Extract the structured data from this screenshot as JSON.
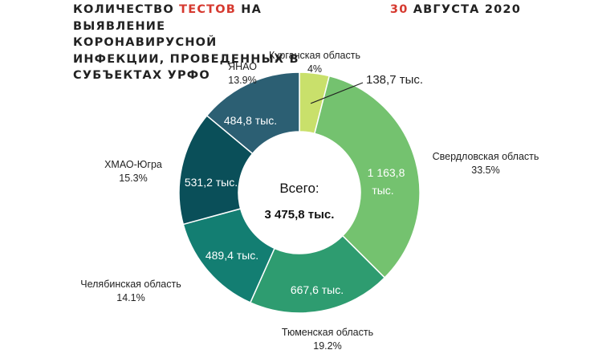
{
  "header": {
    "title_prefix": "КОЛИЧЕСТВО ",
    "title_highlight": "ТЕСТОВ",
    "title_suffix": " НА ВЫЯВЛЕНИЕ КОРОНАВИРУСНОЙ ИНФЕКЦИИ, ПРОВЕДЕННЫХ В СУБЪЕКТАХ УРФО",
    "date_day": "30",
    "date_rest": " АВГУСТА 2020",
    "accent_color": "#d6392f"
  },
  "chart_data": {
    "type": "pie",
    "variant": "donut",
    "start_angle_deg": 0,
    "direction": "clockwise",
    "center": {
      "title": "Всего:",
      "total_label": "3 475,8 тыс.",
      "total": 3475.8
    },
    "slices": [
      {
        "name": "Курганская область",
        "percent_label": "4%",
        "value": 138.7,
        "value_label": "138,7 тыс.",
        "color": "#c9e06b"
      },
      {
        "name": "Свердловская область",
        "percent_label": "33.5%",
        "value": 1163.8,
        "value_label": "1 163,8 тыс.",
        "color": "#74c26f"
      },
      {
        "name": "Тюменская область",
        "percent_label": "19.2%",
        "value": 667.6,
        "value_label": "667,6 тыс.",
        "color": "#2e9c70"
      },
      {
        "name": "Челябинская область",
        "percent_label": "14.1%",
        "value": 489.4,
        "value_label": "489,4 тыс.",
        "color": "#137e72"
      },
      {
        "name": "ХМАО-Югра",
        "percent_label": "15.3%",
        "value": 531.2,
        "value_label": "531,2 тыс.",
        "color": "#0a4f59"
      },
      {
        "name": "ЯНАО",
        "percent_label": "13.9%",
        "value": 484.8,
        "value_label": "484,8 тыс.",
        "color": "#2c5f73"
      }
    ]
  }
}
